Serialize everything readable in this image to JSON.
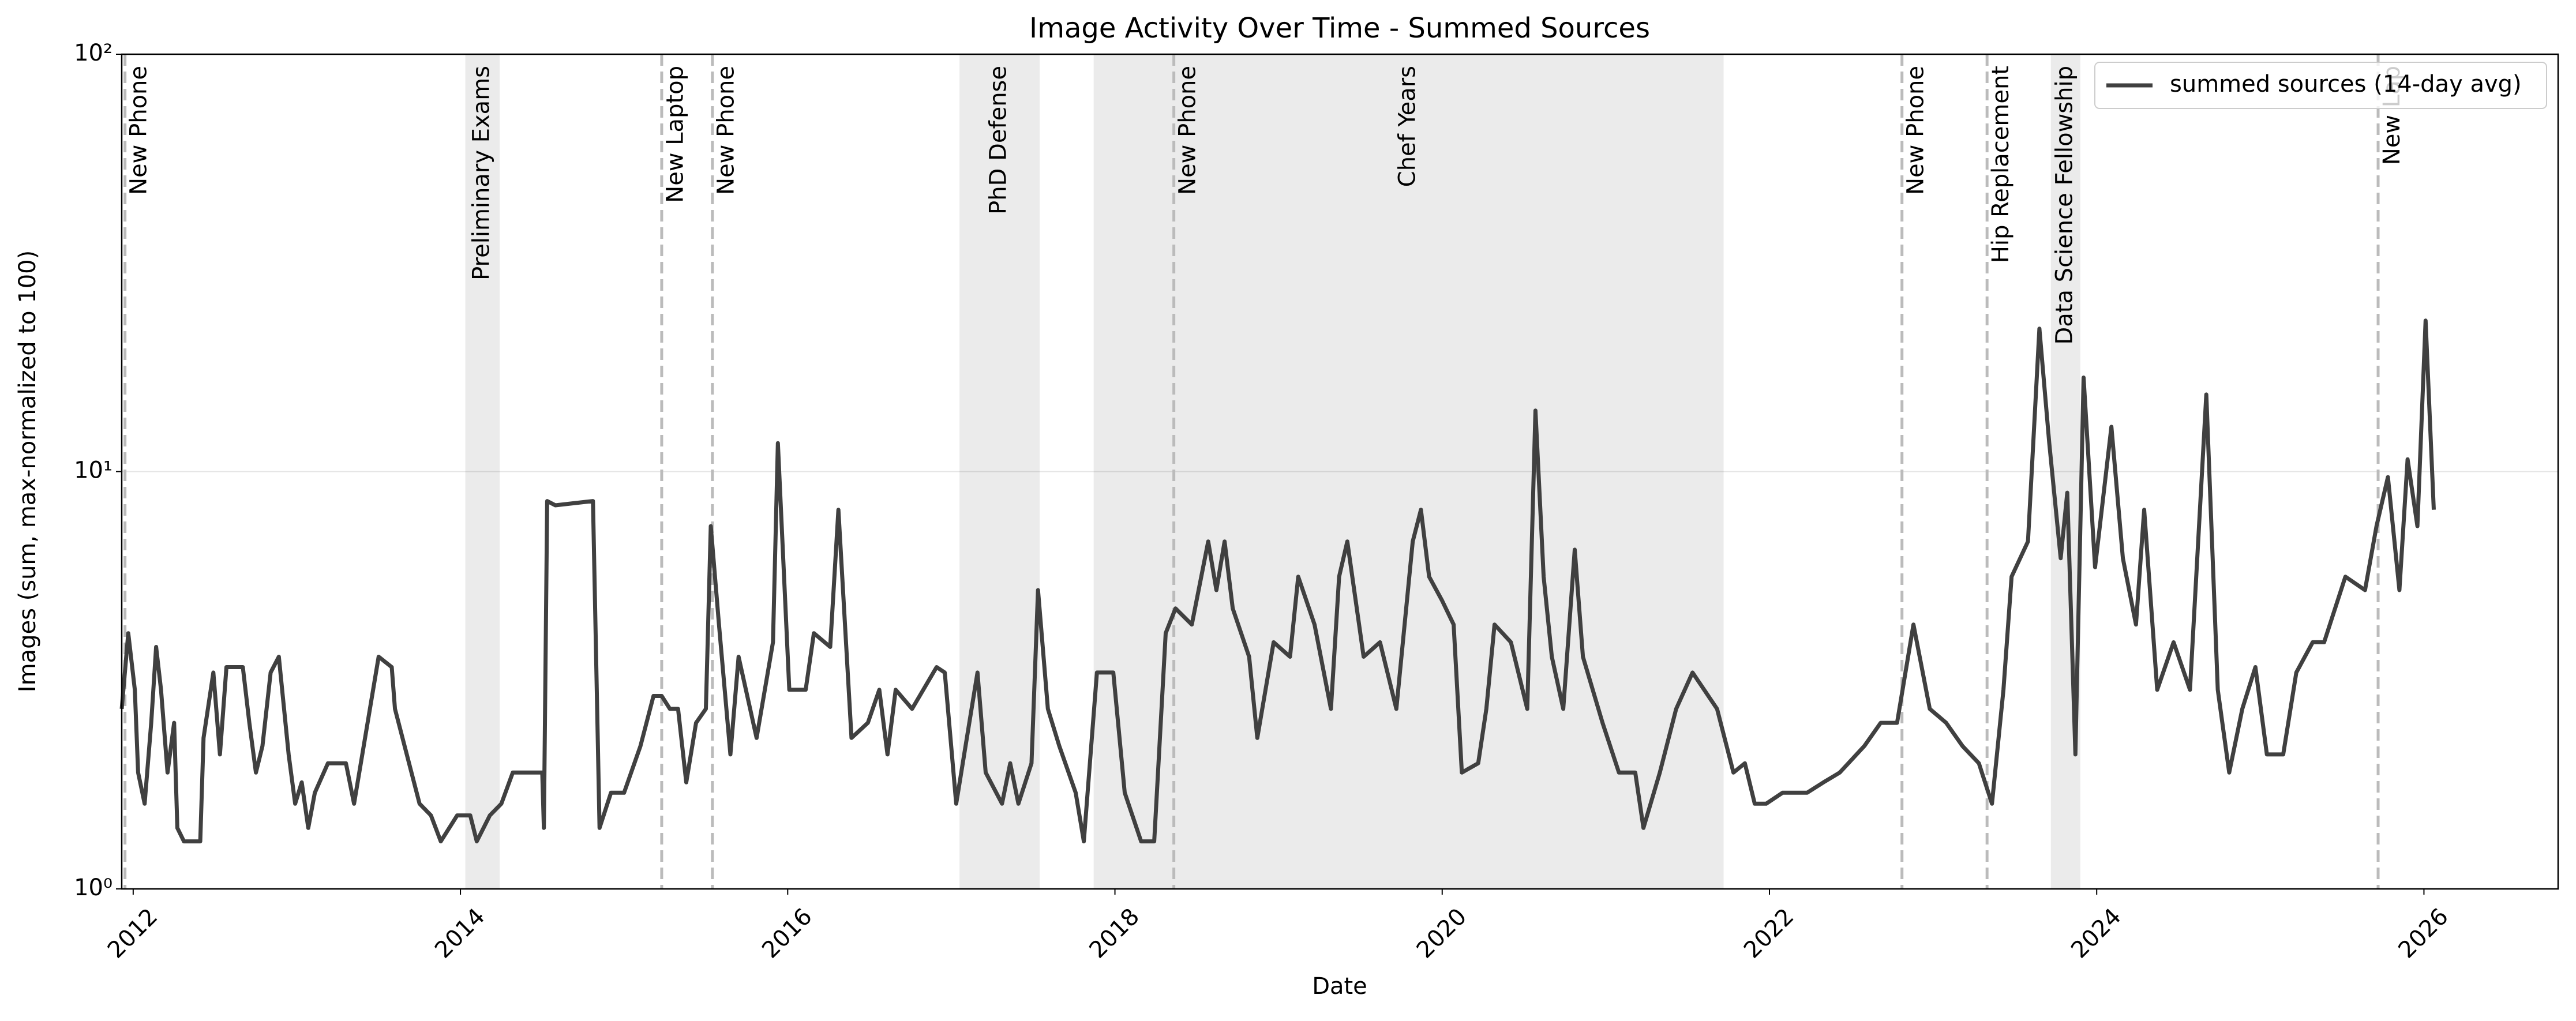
{
  "chart_data": {
    "type": "line",
    "title": "Image Activity Over Time - Summed Sources",
    "xlabel": "Date",
    "ylabel": "Images (sum, max-normalized to 100)",
    "log_y": true,
    "grid": true,
    "legend": "upper right",
    "xlim": [
      2011.93,
      2026.82
    ],
    "xticks": [
      2012,
      2014,
      2016,
      2018,
      2020,
      2022,
      2024,
      2026
    ],
    "ylim": [
      1,
      100
    ],
    "yticks": [
      {
        "value": 1,
        "label": "10⁰"
      },
      {
        "value": 10,
        "label": "10¹"
      },
      {
        "value": 100,
        "label": "10²"
      }
    ],
    "x": [
      2011.93,
      2011.97,
      2012.01,
      2012.03,
      2012.07,
      2012.11,
      2012.14,
      2012.17,
      2012.21,
      2012.25,
      2012.27,
      2012.31,
      2012.41,
      2012.43,
      2012.49,
      2012.53,
      2012.57,
      2012.67,
      2012.71,
      2012.75,
      2012.79,
      2012.84,
      2012.89,
      2012.95,
      2012.99,
      2013.03,
      2013.07,
      2013.11,
      2013.19,
      2013.3,
      2013.35,
      2013.5,
      2013.58,
      2013.6,
      2013.75,
      2013.82,
      2013.88,
      2013.98,
      2014.06,
      2014.1,
      2014.18,
      2014.25,
      2014.32,
      2014.38,
      2014.5,
      2014.51,
      2014.53,
      2014.58,
      2014.81,
      2014.85,
      2014.92,
      2015.0,
      2015.1,
      2015.18,
      2015.23,
      2015.28,
      2015.33,
      2015.38,
      2015.44,
      2015.5,
      2015.53,
      2015.58,
      2015.65,
      2015.7,
      2015.81,
      2015.91,
      2015.94,
      2016.01,
      2016.11,
      2016.16,
      2016.26,
      2016.31,
      2016.39,
      2016.49,
      2016.56,
      2016.61,
      2016.66,
      2016.76,
      2016.91,
      2016.96,
      2017.03,
      2017.11,
      2017.16,
      2017.21,
      2017.31,
      2017.36,
      2017.41,
      2017.49,
      2017.53,
      2017.59,
      2017.66,
      2017.76,
      2017.81,
      2017.89,
      2017.99,
      2018.06,
      2018.16,
      2018.24,
      2018.31,
      2018.37,
      2018.47,
      2018.57,
      2018.62,
      2018.67,
      2018.72,
      2018.82,
      2018.87,
      2018.97,
      2019.07,
      2019.12,
      2019.22,
      2019.32,
      2019.37,
      2019.42,
      2019.52,
      2019.62,
      2019.72,
      2019.82,
      2019.87,
      2019.92,
      2020.0,
      2020.07,
      2020.12,
      2020.22,
      2020.27,
      2020.32,
      2020.42,
      2020.52,
      2020.57,
      2020.62,
      2020.67,
      2020.74,
      2020.81,
      2020.86,
      2020.98,
      2021.08,
      2021.18,
      2021.23,
      2021.33,
      2021.43,
      2021.53,
      2021.68,
      2021.78,
      2021.85,
      2021.91,
      2021.98,
      2022.08,
      2022.23,
      2022.33,
      2022.43,
      2022.58,
      2022.68,
      2022.78,
      2022.88,
      2022.98,
      2023.08,
      2023.18,
      2023.28,
      2023.36,
      2023.43,
      2023.48,
      2023.58,
      2023.65,
      2023.71,
      2023.78,
      2023.82,
      2023.87,
      2023.92,
      2023.99,
      2024.09,
      2024.16,
      2024.24,
      2024.29,
      2024.37,
      2024.47,
      2024.57,
      2024.67,
      2024.74,
      2024.81,
      2024.89,
      2024.97,
      2025.04,
      2025.14,
      2025.22,
      2025.32,
      2025.39,
      2025.52,
      2025.64,
      2025.71,
      2025.78,
      2025.85,
      2025.9,
      2025.96,
      2026.01,
      2026.06
    ],
    "series": [
      {
        "name": "summed sources (14-day avg)",
        "color": "#404040",
        "values": [
          2.7,
          4.1,
          3.0,
          1.9,
          1.6,
          2.5,
          3.8,
          3.0,
          1.9,
          2.5,
          1.4,
          1.3,
          1.3,
          2.3,
          3.3,
          2.1,
          3.4,
          3.4,
          2.5,
          1.9,
          2.2,
          3.3,
          3.6,
          2.1,
          1.6,
          1.8,
          1.4,
          1.7,
          2.0,
          2.0,
          1.6,
          3.6,
          3.4,
          2.7,
          1.6,
          1.5,
          1.3,
          1.5,
          1.5,
          1.3,
          1.5,
          1.6,
          1.9,
          1.9,
          1.9,
          1.4,
          8.5,
          8.3,
          8.5,
          1.4,
          1.7,
          1.7,
          2.2,
          2.9,
          2.9,
          2.7,
          2.7,
          1.8,
          2.5,
          2.7,
          7.4,
          4.3,
          2.1,
          3.6,
          2.3,
          3.9,
          11.7,
          3.0,
          3.0,
          4.1,
          3.8,
          8.1,
          2.3,
          2.5,
          3.0,
          2.1,
          3.0,
          2.7,
          3.4,
          3.3,
          1.6,
          2.5,
          3.3,
          1.9,
          1.6,
          2.0,
          1.6,
          2.0,
          5.2,
          2.7,
          2.2,
          1.7,
          1.3,
          3.3,
          3.3,
          1.7,
          1.3,
          1.3,
          4.1,
          4.7,
          4.3,
          6.8,
          5.2,
          6.8,
          4.7,
          3.6,
          2.3,
          3.9,
          3.6,
          5.6,
          4.3,
          2.7,
          5.6,
          6.8,
          3.6,
          3.9,
          2.7,
          6.8,
          8.1,
          5.6,
          4.9,
          4.3,
          1.9,
          2.0,
          2.7,
          4.3,
          3.9,
          2.7,
          14.0,
          5.6,
          3.6,
          2.7,
          6.5,
          3.6,
          2.5,
          1.9,
          1.9,
          1.4,
          1.9,
          2.7,
          3.3,
          2.7,
          1.9,
          2.0,
          1.6,
          1.6,
          1.7,
          1.7,
          1.8,
          1.9,
          2.2,
          2.5,
          2.5,
          4.3,
          2.7,
          2.5,
          2.2,
          2.0,
          1.6,
          3.0,
          5.6,
          6.8,
          22.0,
          11.7,
          6.2,
          8.9,
          2.1,
          16.8,
          5.9,
          12.8,
          6.2,
          4.3,
          8.1,
          3.0,
          3.9,
          3.0,
          15.3,
          3.0,
          1.9,
          2.7,
          3.4,
          2.1,
          2.1,
          3.3,
          3.9,
          3.9,
          5.6,
          5.2,
          7.4,
          9.7,
          5.2,
          10.7,
          7.4,
          23.0,
          8.1
        ]
      }
    ],
    "event_lines": [
      {
        "label": "New Phone",
        "x": 2011.95
      },
      {
        "label": "New Laptop",
        "x": 2015.23
      },
      {
        "label": "New Phone",
        "x": 2015.54
      },
      {
        "label": "New Phone",
        "x": 2018.36
      },
      {
        "label": "New Phone",
        "x": 2022.81
      },
      {
        "label": "Hip Replacement",
        "x": 2023.33
      },
      {
        "label": "New Lap",
        "x": 2025.72
      }
    ],
    "event_spans": [
      {
        "label": "Preliminary Exams",
        "start": 2014.03,
        "end": 2014.24
      },
      {
        "label": "PhD Defense",
        "start": 2017.05,
        "end": 2017.54
      },
      {
        "label": "Chef Years",
        "start": 2017.87,
        "end": 2021.72
      },
      {
        "label": "Data Science Fellowship",
        "start": 2023.72,
        "end": 2023.9
      }
    ]
  }
}
